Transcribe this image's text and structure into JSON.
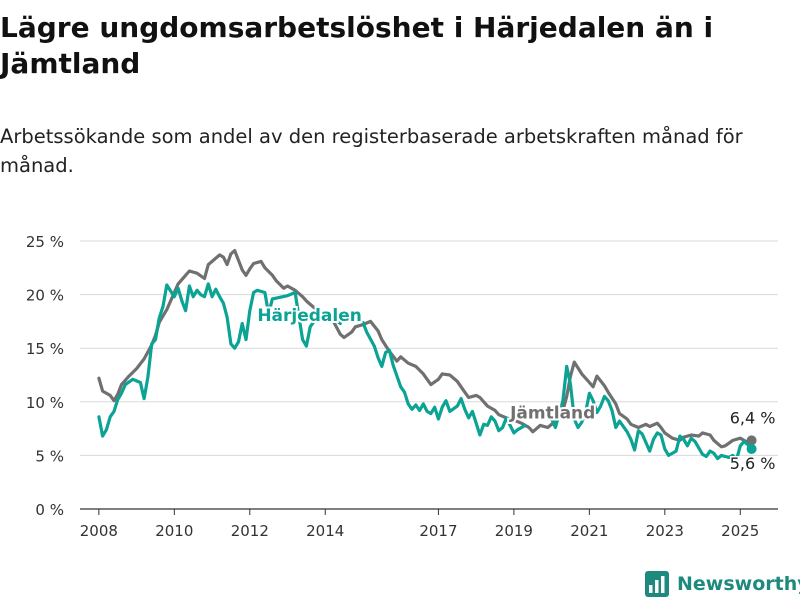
{
  "title": "Lägre ungdomsarbetslöshet i Härjedalen än i Jämtland",
  "subtitle": "Arbetssökande som andel av den registerbaserade arbetskraften månad för månad.",
  "brand": {
    "name": "Newsworthy",
    "icon": "newsworthy-bar-chart-icon"
  },
  "colors": {
    "harjedalen": "#0aa394",
    "jamtland": "#707070",
    "grid": "#d9d9d9",
    "axis": "#333333",
    "brand": "#1e8a7d"
  },
  "chart_data": {
    "type": "line",
    "ylim": [
      0,
      25
    ],
    "yticks": [
      0,
      5,
      10,
      15,
      20,
      25
    ],
    "ytick_labels": [
      "0 %",
      "5 %",
      "10 %",
      "15 %",
      "20 %",
      "25 %"
    ],
    "xlim": [
      2007.5,
      2026.0
    ],
    "xticks": [
      2008,
      2010,
      2012,
      2014,
      2017,
      2019,
      2021,
      2023,
      2025
    ],
    "xtick_labels": [
      "2008",
      "2010",
      "2012",
      "2014",
      "2017",
      "2019",
      "2021",
      "2023",
      "2025"
    ],
    "grid": true,
    "series": [
      {
        "name": "Jämtland",
        "key": "jamtland",
        "end_label": "6,4 %",
        "points": [
          [
            2008.0,
            12.2
          ],
          [
            2008.1,
            11.0
          ],
          [
            2008.3,
            10.6
          ],
          [
            2008.4,
            10.1
          ],
          [
            2008.5,
            10.7
          ],
          [
            2008.6,
            11.6
          ],
          [
            2008.8,
            12.4
          ],
          [
            2009.0,
            13.1
          ],
          [
            2009.2,
            14.0
          ],
          [
            2009.4,
            15.3
          ],
          [
            2009.5,
            16.2
          ],
          [
            2009.6,
            17.4
          ],
          [
            2009.8,
            18.6
          ],
          [
            2010.0,
            20.2
          ],
          [
            2010.1,
            21.0
          ],
          [
            2010.3,
            21.8
          ],
          [
            2010.4,
            22.2
          ],
          [
            2010.6,
            22.0
          ],
          [
            2010.8,
            21.5
          ],
          [
            2010.9,
            22.8
          ],
          [
            2011.0,
            23.1
          ],
          [
            2011.2,
            23.7
          ],
          [
            2011.3,
            23.5
          ],
          [
            2011.4,
            22.8
          ],
          [
            2011.5,
            23.8
          ],
          [
            2011.6,
            24.1
          ],
          [
            2011.7,
            23.2
          ],
          [
            2011.8,
            22.3
          ],
          [
            2011.9,
            21.8
          ],
          [
            2012.0,
            22.4
          ],
          [
            2012.1,
            22.9
          ],
          [
            2012.3,
            23.1
          ],
          [
            2012.4,
            22.5
          ],
          [
            2012.6,
            21.8
          ],
          [
            2012.7,
            21.3
          ],
          [
            2012.9,
            20.6
          ],
          [
            2013.0,
            20.8
          ],
          [
            2013.2,
            20.4
          ],
          [
            2013.4,
            19.8
          ],
          [
            2013.5,
            19.4
          ],
          [
            2013.7,
            18.8
          ],
          [
            2013.9,
            18.3
          ],
          [
            2014.0,
            17.9
          ],
          [
            2014.2,
            17.6
          ],
          [
            2014.4,
            16.3
          ],
          [
            2014.5,
            16.0
          ],
          [
            2014.7,
            16.5
          ],
          [
            2014.8,
            17.0
          ],
          [
            2015.0,
            17.2
          ],
          [
            2015.2,
            17.5
          ],
          [
            2015.4,
            16.6
          ],
          [
            2015.5,
            15.8
          ],
          [
            2015.7,
            14.7
          ],
          [
            2015.9,
            13.8
          ],
          [
            2016.0,
            14.2
          ],
          [
            2016.2,
            13.6
          ],
          [
            2016.4,
            13.3
          ],
          [
            2016.6,
            12.6
          ],
          [
            2016.8,
            11.6
          ],
          [
            2017.0,
            12.1
          ],
          [
            2017.1,
            12.6
          ],
          [
            2017.3,
            12.5
          ],
          [
            2017.5,
            11.9
          ],
          [
            2017.7,
            10.9
          ],
          [
            2017.8,
            10.4
          ],
          [
            2018.0,
            10.6
          ],
          [
            2018.1,
            10.4
          ],
          [
            2018.3,
            9.6
          ],
          [
            2018.5,
            9.2
          ],
          [
            2018.6,
            8.8
          ],
          [
            2018.8,
            8.5
          ],
          [
            2019.0,
            8.3
          ],
          [
            2019.2,
            8.0
          ],
          [
            2019.4,
            7.6
          ],
          [
            2019.5,
            7.2
          ],
          [
            2019.7,
            7.8
          ],
          [
            2019.9,
            7.6
          ],
          [
            2020.1,
            8.2
          ],
          [
            2020.3,
            9.2
          ],
          [
            2020.4,
            10.5
          ],
          [
            2020.5,
            12.4
          ],
          [
            2020.6,
            13.7
          ],
          [
            2020.8,
            12.6
          ],
          [
            2021.0,
            11.8
          ],
          [
            2021.1,
            11.4
          ],
          [
            2021.2,
            12.4
          ],
          [
            2021.4,
            11.5
          ],
          [
            2021.5,
            10.9
          ],
          [
            2021.7,
            9.8
          ],
          [
            2021.8,
            8.9
          ],
          [
            2022.0,
            8.4
          ],
          [
            2022.1,
            7.9
          ],
          [
            2022.3,
            7.6
          ],
          [
            2022.5,
            7.9
          ],
          [
            2022.6,
            7.7
          ],
          [
            2022.8,
            8.0
          ],
          [
            2022.9,
            7.6
          ],
          [
            2023.0,
            7.1
          ],
          [
            2023.2,
            6.6
          ],
          [
            2023.4,
            6.4
          ],
          [
            2023.5,
            6.7
          ],
          [
            2023.7,
            6.9
          ],
          [
            2023.9,
            6.8
          ],
          [
            2024.0,
            7.1
          ],
          [
            2024.2,
            6.9
          ],
          [
            2024.3,
            6.4
          ],
          [
            2024.5,
            5.8
          ],
          [
            2024.6,
            5.9
          ],
          [
            2024.8,
            6.4
          ],
          [
            2025.0,
            6.6
          ],
          [
            2025.2,
            6.2
          ],
          [
            2025.3,
            6.4
          ]
        ]
      },
      {
        "name": "Härjedalen",
        "key": "harjedalen",
        "end_label": "5,6 %",
        "points": [
          [
            2008.0,
            8.6
          ],
          [
            2008.1,
            6.8
          ],
          [
            2008.2,
            7.4
          ],
          [
            2008.3,
            8.6
          ],
          [
            2008.4,
            9.1
          ],
          [
            2008.5,
            10.2
          ],
          [
            2008.6,
            10.8
          ],
          [
            2008.7,
            11.6
          ],
          [
            2008.9,
            12.1
          ],
          [
            2009.1,
            11.8
          ],
          [
            2009.2,
            10.3
          ],
          [
            2009.3,
            12.3
          ],
          [
            2009.4,
            15.4
          ],
          [
            2009.5,
            15.8
          ],
          [
            2009.6,
            17.8
          ],
          [
            2009.7,
            18.9
          ],
          [
            2009.8,
            20.9
          ],
          [
            2010.0,
            19.8
          ],
          [
            2010.1,
            20.6
          ],
          [
            2010.2,
            19.4
          ],
          [
            2010.3,
            18.5
          ],
          [
            2010.4,
            20.8
          ],
          [
            2010.5,
            19.8
          ],
          [
            2010.6,
            20.4
          ],
          [
            2010.7,
            20.0
          ],
          [
            2010.8,
            19.8
          ],
          [
            2010.9,
            21.0
          ],
          [
            2011.0,
            19.8
          ],
          [
            2011.1,
            20.5
          ],
          [
            2011.2,
            19.8
          ],
          [
            2011.3,
            19.2
          ],
          [
            2011.4,
            17.9
          ],
          [
            2011.5,
            15.4
          ],
          [
            2011.6,
            15.0
          ],
          [
            2011.7,
            15.6
          ],
          [
            2011.8,
            17.3
          ],
          [
            2011.9,
            15.8
          ],
          [
            2012.0,
            18.5
          ],
          [
            2012.1,
            20.2
          ],
          [
            2012.2,
            20.4
          ],
          [
            2012.4,
            20.2
          ],
          [
            2012.5,
            18.2
          ],
          [
            2012.6,
            19.6
          ],
          [
            2013.0,
            19.9
          ],
          [
            2013.2,
            20.2
          ],
          [
            2013.4,
            15.8
          ],
          [
            2013.5,
            15.2
          ],
          [
            2013.6,
            17.0
          ],
          [
            2013.8,
            18.0
          ],
          [
            2014.0,
            17.5
          ],
          [
            2014.2,
            17.8
          ],
          [
            2014.4,
            17.3
          ],
          [
            2015.0,
            17.4
          ],
          [
            2015.1,
            16.5
          ],
          [
            2015.3,
            15.2
          ],
          [
            2015.4,
            14.1
          ],
          [
            2015.5,
            13.3
          ],
          [
            2015.6,
            14.6
          ],
          [
            2015.7,
            14.8
          ],
          [
            2015.8,
            13.4
          ],
          [
            2016.0,
            11.4
          ],
          [
            2016.1,
            10.9
          ],
          [
            2016.2,
            9.8
          ],
          [
            2016.3,
            9.3
          ],
          [
            2016.4,
            9.7
          ],
          [
            2016.5,
            9.2
          ],
          [
            2016.6,
            9.8
          ],
          [
            2016.7,
            9.1
          ],
          [
            2016.8,
            8.9
          ],
          [
            2016.9,
            9.5
          ],
          [
            2017.0,
            8.4
          ],
          [
            2017.1,
            9.5
          ],
          [
            2017.2,
            10.1
          ],
          [
            2017.3,
            9.1
          ],
          [
            2017.5,
            9.6
          ],
          [
            2017.6,
            10.3
          ],
          [
            2017.7,
            9.3
          ],
          [
            2017.8,
            8.5
          ],
          [
            2017.9,
            9.1
          ],
          [
            2018.0,
            8.0
          ],
          [
            2018.1,
            6.9
          ],
          [
            2018.2,
            7.9
          ],
          [
            2018.3,
            7.8
          ],
          [
            2018.4,
            8.6
          ],
          [
            2018.5,
            8.2
          ],
          [
            2018.6,
            7.3
          ],
          [
            2018.7,
            7.6
          ],
          [
            2018.8,
            8.5
          ],
          [
            2018.9,
            7.8
          ],
          [
            2019.0,
            7.1
          ],
          [
            2019.1,
            7.4
          ],
          [
            2019.3,
            7.8
          ],
          [
            2020.0,
            8.4
          ],
          [
            2020.1,
            7.6
          ],
          [
            2020.3,
            10.1
          ],
          [
            2020.4,
            13.3
          ],
          [
            2020.5,
            11.6
          ],
          [
            2020.6,
            8.4
          ],
          [
            2020.7,
            7.6
          ],
          [
            2020.8,
            8.1
          ],
          [
            2020.9,
            9.0
          ],
          [
            2021.0,
            10.8
          ],
          [
            2021.1,
            10.1
          ],
          [
            2021.2,
            9.0
          ],
          [
            2021.3,
            9.6
          ],
          [
            2021.4,
            10.5
          ],
          [
            2021.5,
            10.1
          ],
          [
            2021.6,
            9.2
          ],
          [
            2021.7,
            7.6
          ],
          [
            2021.8,
            8.2
          ],
          [
            2022.0,
            7.2
          ],
          [
            2022.1,
            6.5
          ],
          [
            2022.2,
            5.5
          ],
          [
            2022.3,
            7.3
          ],
          [
            2022.4,
            7.0
          ],
          [
            2022.6,
            5.4
          ],
          [
            2022.7,
            6.5
          ],
          [
            2022.8,
            7.1
          ],
          [
            2022.9,
            6.9
          ],
          [
            2023.0,
            5.6
          ],
          [
            2023.1,
            5.0
          ],
          [
            2023.3,
            5.4
          ],
          [
            2023.4,
            6.8
          ],
          [
            2023.5,
            6.5
          ],
          [
            2023.6,
            5.9
          ],
          [
            2023.7,
            6.6
          ],
          [
            2023.8,
            6.3
          ],
          [
            2023.9,
            5.7
          ],
          [
            2024.0,
            5.1
          ],
          [
            2024.1,
            4.9
          ],
          [
            2024.2,
            5.4
          ],
          [
            2024.3,
            5.2
          ],
          [
            2024.4,
            4.7
          ],
          [
            2024.5,
            5.0
          ],
          [
            2024.7,
            4.8
          ],
          [
            2024.8,
            5.0
          ],
          [
            2024.9,
            4.6
          ],
          [
            2025.0,
            5.9
          ],
          [
            2025.1,
            6.3
          ],
          [
            2025.2,
            6.0
          ],
          [
            2025.3,
            5.6
          ]
        ]
      }
    ]
  }
}
